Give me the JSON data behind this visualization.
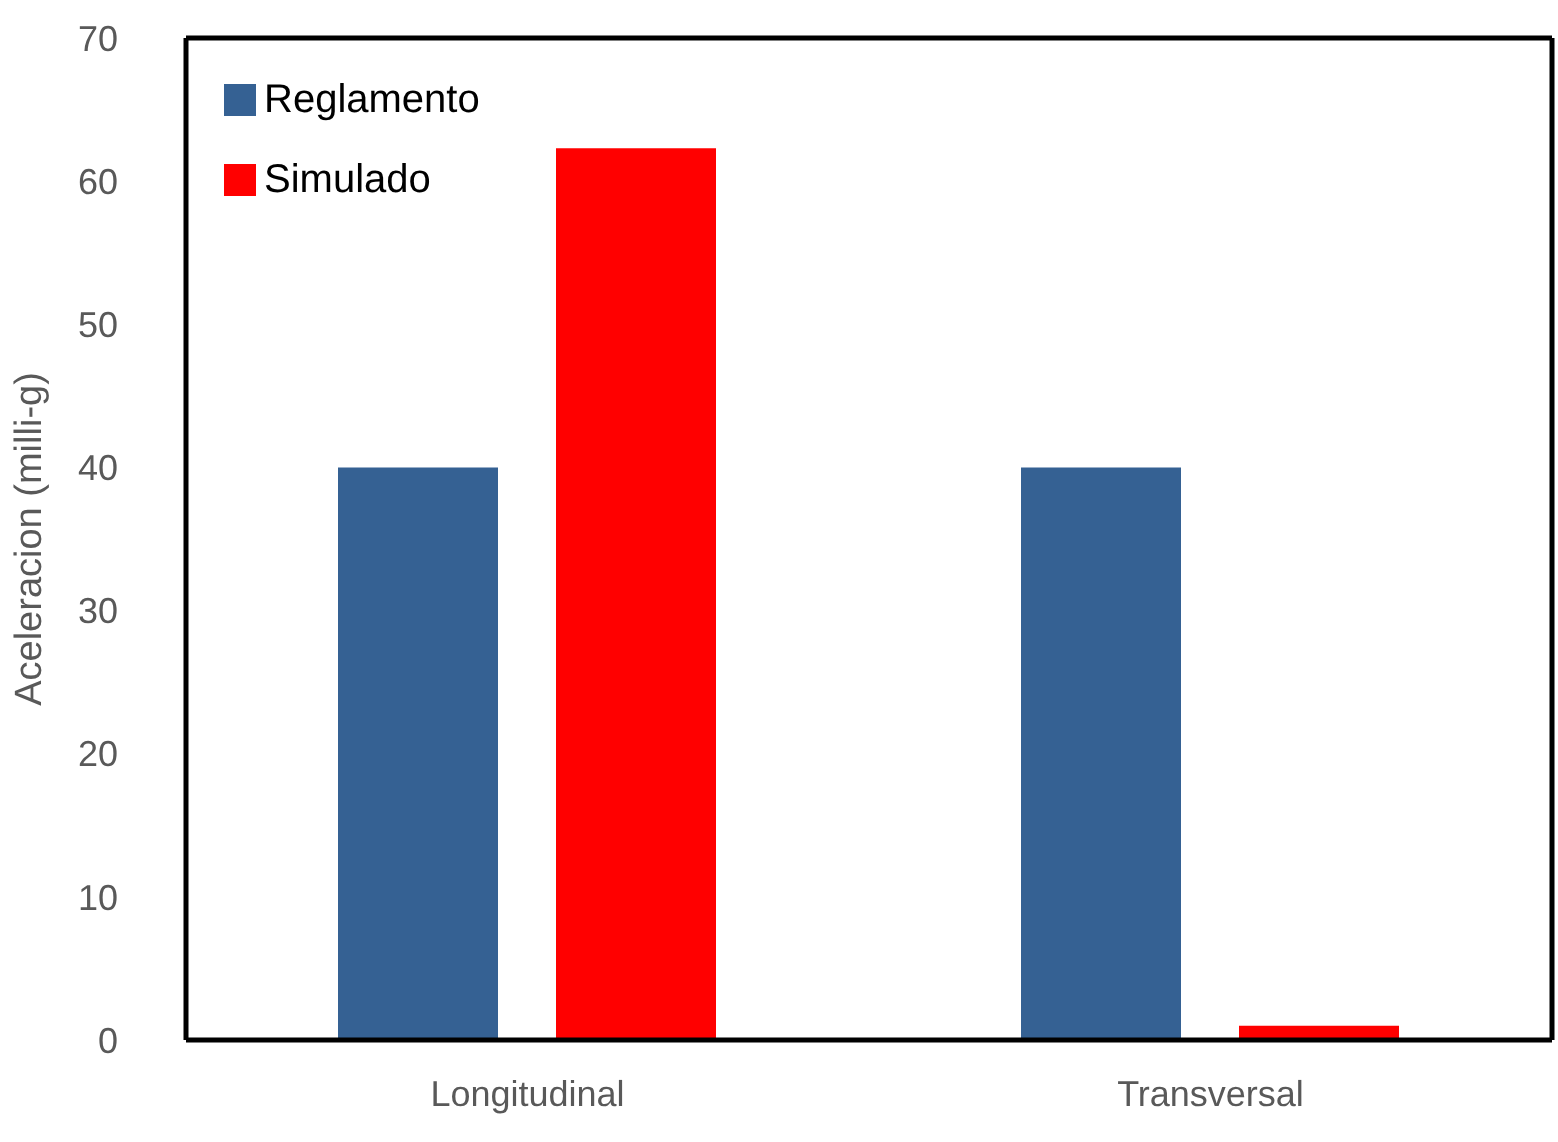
{
  "chart_data": {
    "type": "bar",
    "ylabel": "Aceleracion (milli-g)",
    "categories": [
      "Longitudinal",
      "Transversal"
    ],
    "series": [
      {
        "name": "Reglamento",
        "color": "#356193",
        "values": [
          40,
          40
        ]
      },
      {
        "name": "Simulado",
        "color": "#ff0000",
        "values": [
          62.3,
          1
        ]
      }
    ],
    "ylim": [
      0,
      70
    ],
    "yticks": [
      0,
      10,
      20,
      30,
      40,
      50,
      60,
      70
    ],
    "grid": false,
    "legend": "top left"
  }
}
